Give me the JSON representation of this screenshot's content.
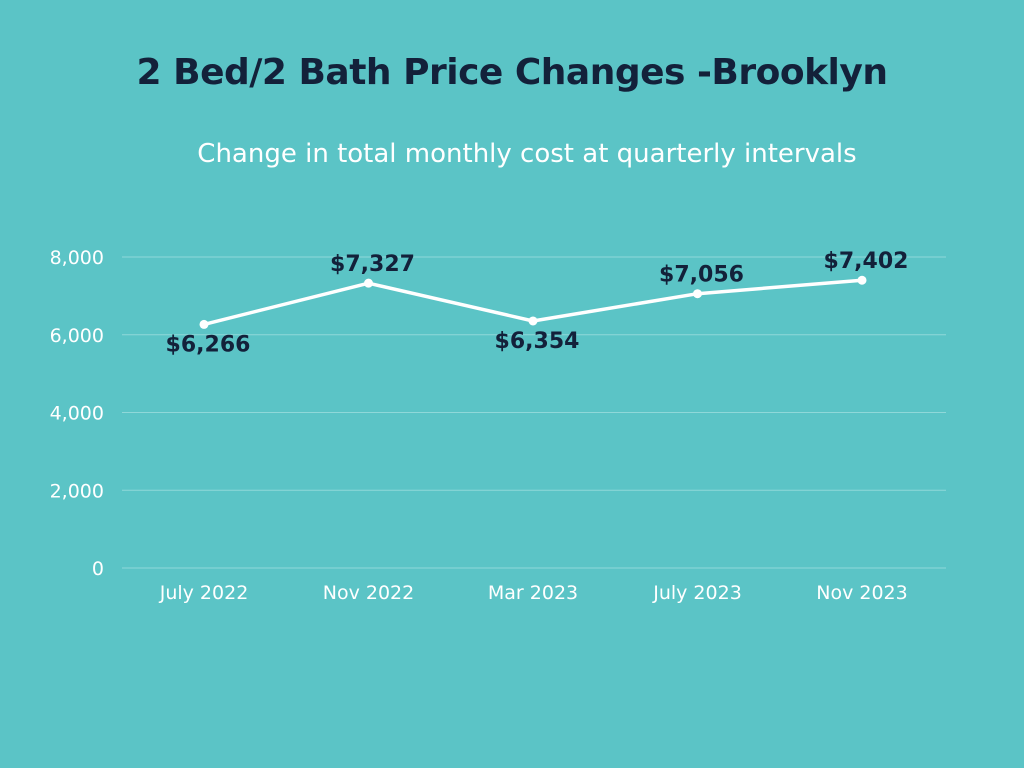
{
  "title": "2 Bed/2 Bath Price Changes -Brooklyn",
  "subtitle": "Change in total monthly cost at quarterly intervals",
  "colors": {
    "background": "#5bc4c6",
    "line": "#ffffff",
    "gridline": "#8fd8d9",
    "title": "#13213a",
    "data_label": "#13213a"
  },
  "chart_data": {
    "type": "line",
    "title": "2 Bed/2 Bath Price Changes -Brooklyn",
    "subtitle": "Change in total monthly cost at quarterly intervals",
    "xlabel": "",
    "ylabel": "",
    "categories": [
      "July 2022",
      "Nov 2022",
      "Mar 2023",
      "July 2023",
      "Nov 2023"
    ],
    "series": [
      {
        "values": [
          6266,
          7327,
          6354,
          7056,
          7402
        ]
      }
    ],
    "data_labels": [
      "$6,266",
      "$7,327",
      "$6,354",
      "$7,056",
      "$7,402"
    ],
    "label_positions": [
      "below",
      "above",
      "below",
      "above",
      "above"
    ],
    "ylim": [
      0,
      8000
    ],
    "yticks": [
      0,
      2000,
      4000,
      6000,
      8000
    ],
    "ytick_labels": [
      "0",
      "2,000",
      "4,000",
      "6,000",
      "8,000"
    ],
    "grid": true,
    "legend": "none"
  }
}
